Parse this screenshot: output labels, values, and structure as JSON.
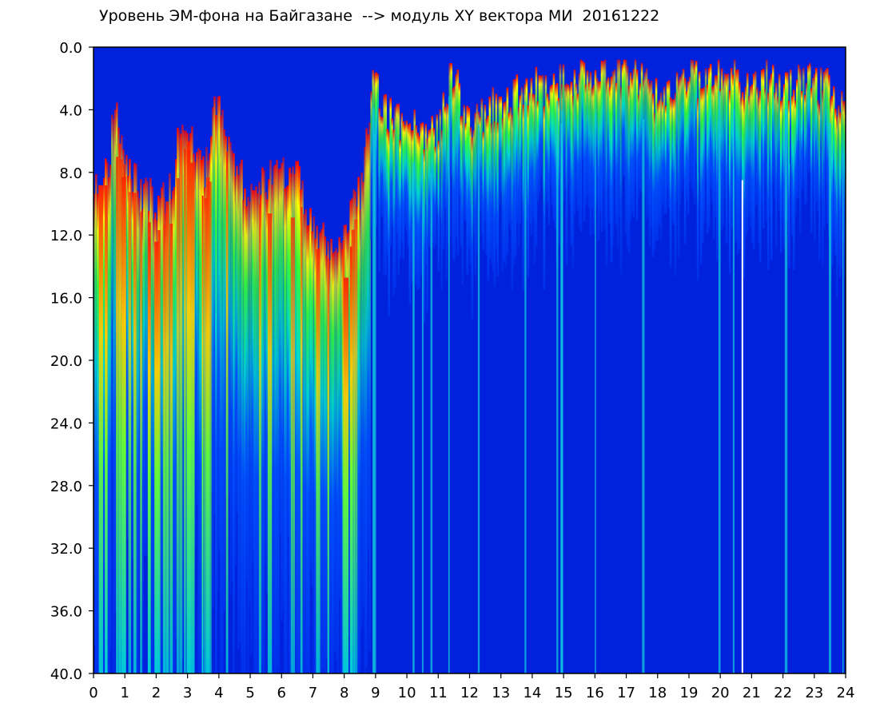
{
  "chart_data": {
    "type": "heatmap",
    "title": "Уровень ЭМ-фона на Байгазане  --> модуль XY вектора МИ  20161222",
    "xlabel": "",
    "ylabel": "",
    "x_ticks": [
      "0",
      "1",
      "2",
      "3",
      "4",
      "5",
      "6",
      "7",
      "8",
      "9",
      "10",
      "11",
      "12",
      "13",
      "14",
      "15",
      "16",
      "17",
      "18",
      "19",
      "20",
      "21",
      "22",
      "23",
      "24"
    ],
    "y_ticks": [
      "0.0",
      "4.0",
      "8.0",
      "12.0",
      "16.0",
      "20.0",
      "24.0",
      "28.0",
      "32.0",
      "36.0",
      "40.0"
    ],
    "xlim": [
      0,
      24
    ],
    "ylim": [
      40,
      0
    ],
    "y_inverted": true,
    "grid": false,
    "colors": {
      "background": "#0022dd",
      "low": "#0030f0",
      "mid": "#00ddcc",
      "high": "#33ff33",
      "peak_yellow": "#ffff00",
      "peak_red": "#ff0000"
    },
    "series": [
      {
        "values": [
          [
            0.0,
            8.5
          ],
          [
            0.5,
            7.5
          ],
          [
            0.6,
            3.5
          ],
          [
            1.0,
            8.0
          ],
          [
            1.5,
            9.0
          ],
          [
            2.0,
            10.0
          ],
          [
            2.5,
            9.0
          ],
          [
            2.8,
            4.0
          ],
          [
            3.5,
            8.0
          ],
          [
            3.9,
            3.0
          ],
          [
            4.3,
            7.0
          ],
          [
            5.0,
            9.5
          ],
          [
            5.5,
            8.5
          ],
          [
            6.0,
            8.0
          ],
          [
            6.5,
            8.5
          ],
          [
            7.0,
            11.5
          ],
          [
            7.5,
            12.5
          ],
          [
            8.0,
            12.0
          ],
          [
            8.5,
            9.0
          ],
          [
            8.9,
            2.5
          ],
          [
            9.5,
            4.5
          ],
          [
            10.0,
            5.0
          ],
          [
            10.5,
            5.5
          ],
          [
            11.0,
            5.5
          ],
          [
            11.4,
            1.5
          ],
          [
            12.0,
            5.0
          ],
          [
            12.5,
            4.0
          ],
          [
            13.0,
            3.5
          ],
          [
            13.5,
            3.0
          ],
          [
            14.0,
            2.5
          ],
          [
            14.5,
            2.5
          ],
          [
            15.0,
            2.0
          ],
          [
            15.5,
            1.8
          ],
          [
            16.0,
            2.0
          ],
          [
            16.5,
            1.6
          ],
          [
            17.0,
            1.5
          ],
          [
            17.5,
            2.0
          ],
          [
            18.0,
            3.5
          ],
          [
            18.5,
            2.5
          ],
          [
            19.0,
            2.0
          ],
          [
            19.5,
            2.0
          ],
          [
            20.0,
            1.8
          ],
          [
            20.5,
            2.0
          ],
          [
            21.0,
            2.2
          ],
          [
            21.5,
            1.8
          ],
          [
            22.0,
            2.5
          ],
          [
            22.5,
            2.0
          ],
          [
            23.0,
            2.5
          ],
          [
            23.5,
            2.5
          ],
          [
            24.0,
            4.5
          ]
        ]
      }
    ]
  }
}
